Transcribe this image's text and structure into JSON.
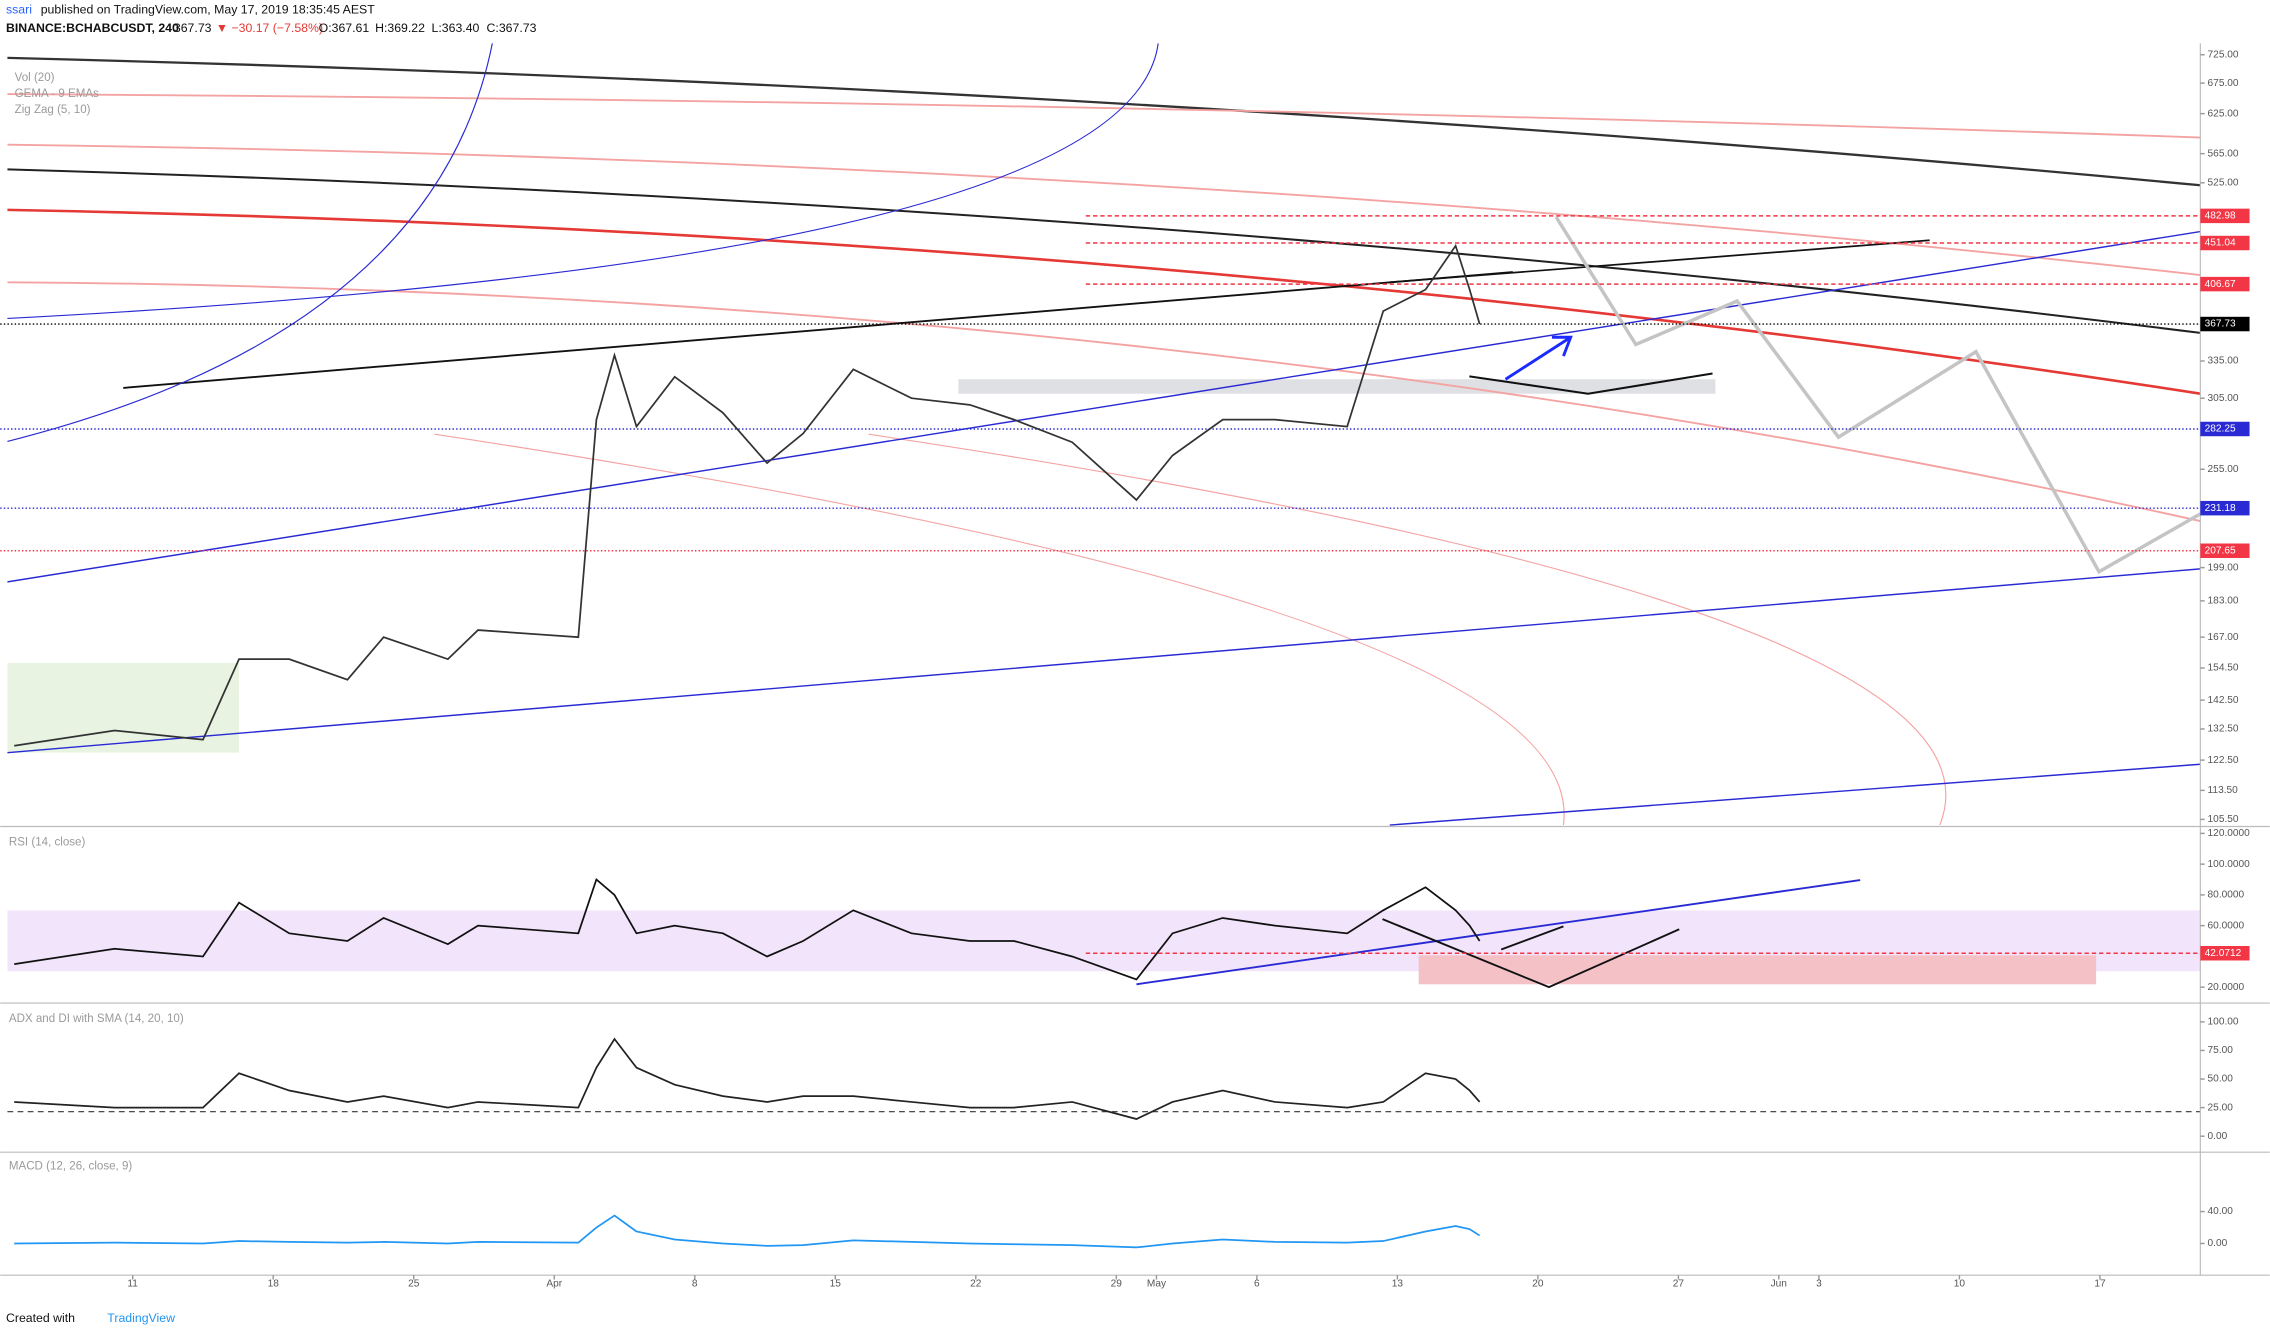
{
  "header": {
    "author": "ssari",
    "published": "published on TradingView.com, May 17, 2019 18:35:45 AEST",
    "symbol": "BINANCE:BCHABCUSDT, 240",
    "last": "367.73",
    "change": "▼ −30.17 (−7.58%)",
    "open": "O:367.61",
    "high": "H:369.22",
    "low": "L:363.40",
    "close": "C:367.73"
  },
  "footer": {
    "created": "Created with",
    "brand": "TradingView"
  },
  "chart_data": [
    {
      "type": "line",
      "legend": [
        "Vol (20)",
        "GEMA - 9 EMAs",
        "Zig Zag (5, 10)"
      ],
      "log_scale": true,
      "color": "#333333",
      "xlim": [
        3.4,
        113
      ],
      "ylim": [
        104,
        746
      ],
      "yticks": [
        {
          "value": 725,
          "label": "725.00"
        },
        {
          "value": 675,
          "label": "675.00"
        },
        {
          "value": 625,
          "label": "625.00"
        },
        {
          "value": 565,
          "label": "565.00"
        },
        {
          "value": 525,
          "label": "525.00"
        },
        {
          "value": 335,
          "label": "335.00"
        },
        {
          "value": 305,
          "label": "305.00"
        },
        {
          "value": 255,
          "label": "255.00"
        },
        {
          "value": 199,
          "label": "199.00"
        },
        {
          "value": 183,
          "label": "183.00"
        },
        {
          "value": 167,
          "label": "167.00"
        },
        {
          "value": 154.5,
          "label": "154.50"
        },
        {
          "value": 142.5,
          "label": "142.50"
        },
        {
          "value": 132.5,
          "label": "132.50"
        },
        {
          "value": 122.5,
          "label": "122.50"
        },
        {
          "value": 113.5,
          "label": "113.50"
        },
        {
          "value": 105.5,
          "label": "105.50"
        }
      ],
      "price_levels": [
        {
          "value": 482.98,
          "color": "#f23645",
          "style": "dashed"
        },
        {
          "value": 451.04,
          "color": "#f23645",
          "style": "dashed"
        },
        {
          "value": 406.67,
          "color": "#f23645",
          "style": "dashed"
        },
        {
          "value": 367.73,
          "color": "#000000",
          "style": "dotted"
        },
        {
          "value": 282.25,
          "color": "#2a2ad4",
          "style": "dotted"
        },
        {
          "value": 231.18,
          "color": "#2a2ad4",
          "style": "dotted"
        },
        {
          "value": 207.65,
          "color": "#f23645",
          "style": "dotted"
        }
      ],
      "x": [
        4.1,
        9.1,
        13.5,
        15.3,
        17.8,
        20.7,
        22.5,
        25.7,
        27.2,
        32.2,
        33.1,
        34.0,
        35.1,
        37.0,
        39.4,
        41.6,
        43.4,
        45.9,
        48.8,
        51.7,
        53.9,
        56.8,
        60.0,
        61.8,
        64.3,
        66.9,
        70.5,
        72.3,
        74.4,
        75.9,
        76.6,
        77.1
      ],
      "values": [
        127,
        132,
        129,
        158,
        158,
        150,
        167,
        158,
        170,
        167,
        289,
        340,
        284,
        322,
        294,
        259,
        279,
        328,
        305,
        300,
        289,
        273,
        236,
        264,
        289,
        289,
        284,
        380,
        401,
        448,
        401,
        367.73
      ]
    },
    {
      "type": "line",
      "title": "RSI (14, close)",
      "log_scale": false,
      "color": "#111111",
      "xlim": [
        3.4,
        113
      ],
      "ylim": [
        10.6,
        122.6
      ],
      "yticks": [
        {
          "value": 120,
          "label": "120.0000"
        },
        {
          "value": 100,
          "label": "100.0000"
        },
        {
          "value": 80,
          "label": "80.0000"
        },
        {
          "value": 60,
          "label": "60.0000"
        },
        {
          "value": 20,
          "label": "20.0000"
        }
      ],
      "price_levels": [
        {
          "value": 42.0712,
          "color": "#f23645",
          "style": "dashed"
        }
      ],
      "x": [
        4.1,
        9.1,
        13.5,
        15.3,
        17.8,
        20.7,
        22.5,
        25.7,
        27.2,
        32.2,
        33.1,
        34.0,
        35.1,
        37.0,
        39.4,
        41.6,
        43.4,
        45.9,
        48.8,
        51.7,
        53.9,
        56.8,
        60.0,
        61.8,
        64.3,
        66.9,
        70.5,
        72.3,
        74.4,
        75.9,
        76.6,
        77.1
      ],
      "values": [
        35,
        45,
        40,
        75,
        55,
        50,
        65,
        48,
        60,
        55,
        90,
        80,
        55,
        60,
        55,
        40,
        50,
        70,
        55,
        50,
        50,
        40,
        25,
        55,
        65,
        60,
        55,
        70,
        85,
        70,
        60,
        50
      ]
    },
    {
      "type": "line",
      "title": "ADX and DI with SMA (14, 20, 10)",
      "log_scale": false,
      "color": "#222222",
      "xlim": [
        3.4,
        113
      ],
      "ylim": [
        -12.7,
        113.9
      ],
      "yticks": [
        {
          "value": 100,
          "label": "100.00"
        },
        {
          "value": 75,
          "label": "75.00"
        },
        {
          "value": 50,
          "label": "50.00"
        },
        {
          "value": 25,
          "label": "25.00"
        },
        {
          "value": 0,
          "label": "0.00"
        }
      ],
      "x": [
        4.1,
        9.1,
        13.5,
        15.3,
        17.8,
        20.7,
        22.5,
        25.7,
        27.2,
        32.2,
        33.1,
        34.0,
        35.1,
        37.0,
        39.4,
        41.6,
        43.4,
        45.9,
        48.8,
        51.7,
        53.9,
        56.8,
        60.0,
        61.8,
        64.3,
        66.9,
        70.5,
        72.3,
        74.4,
        75.9,
        76.6,
        77.1
      ],
      "values": [
        30,
        25,
        25,
        55,
        40,
        30,
        35,
        25,
        30,
        25,
        60,
        85,
        60,
        45,
        35,
        30,
        35,
        35,
        30,
        25,
        25,
        30,
        15,
        30,
        40,
        30,
        25,
        30,
        55,
        50,
        40,
        30
      ]
    },
    {
      "type": "line",
      "title": "MACD (12, 26, close, 9)",
      "log_scale": false,
      "color": "#2196f3",
      "xlim": [
        3.4,
        113
      ],
      "ylim": [
        -38,
        112.7
      ],
      "yticks": [
        {
          "value": 40,
          "label": "40.00"
        },
        {
          "value": 0,
          "label": "0.00"
        }
      ],
      "xticks": [
        {
          "value": 10,
          "label": "11"
        },
        {
          "value": 17,
          "label": "18"
        },
        {
          "value": 24,
          "label": "25"
        },
        {
          "value": 31,
          "label": "Apr"
        },
        {
          "value": 38,
          "label": "8"
        },
        {
          "value": 45,
          "label": "15"
        },
        {
          "value": 52,
          "label": "22"
        },
        {
          "value": 59,
          "label": "29"
        },
        {
          "value": 61,
          "label": "May"
        },
        {
          "value": 66,
          "label": "6"
        },
        {
          "value": 73,
          "label": "13"
        },
        {
          "value": 80,
          "label": "20"
        },
        {
          "value": 87,
          "label": "27"
        },
        {
          "value": 92,
          "label": "Jun"
        },
        {
          "value": 94,
          "label": "3"
        },
        {
          "value": 101,
          "label": "10"
        },
        {
          "value": 108,
          "label": "17"
        }
      ],
      "x": [
        4.1,
        9.1,
        13.5,
        15.3,
        17.8,
        20.7,
        22.5,
        25.7,
        27.2,
        32.2,
        33.1,
        34.0,
        35.1,
        37.0,
        39.4,
        41.6,
        43.4,
        45.9,
        48.8,
        51.7,
        53.9,
        56.8,
        60.0,
        61.8,
        64.3,
        66.9,
        70.5,
        72.3,
        74.4,
        75.9,
        76.6,
        77.1
      ],
      "values": [
        0,
        1,
        0,
        3,
        2,
        1,
        2,
        0,
        2,
        1,
        20,
        35,
        15,
        5,
        0,
        -3,
        -2,
        4,
        2,
        0,
        -1,
        -2,
        -5,
        0,
        5,
        2,
        1,
        3,
        15,
        22,
        18,
        10
      ]
    }
  ]
}
